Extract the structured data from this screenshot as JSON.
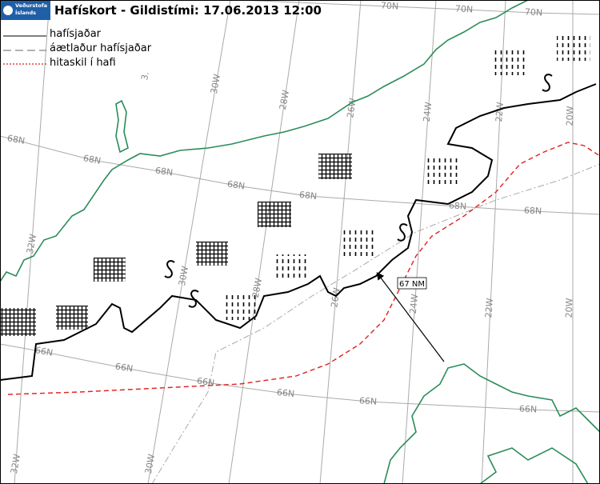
{
  "header": {
    "title": "Hafískort - Gildistími: 17.06.2013 12:00",
    "logo": [
      "Veðurstofa",
      "Íslands"
    ]
  },
  "legend": [
    "hafísjaðar",
    "áætlaður hafísjaðar",
    "hitaskil í hafi"
  ],
  "grid_labels": [
    "70N",
    "70N",
    "70N",
    "3.",
    "30W",
    "28W",
    "26W",
    "24W",
    "22W",
    "20W",
    "68N",
    "68N",
    "68N",
    "68N",
    "68N",
    "68N",
    "68N",
    "32W",
    "30W",
    "28W",
    "26W",
    "24W",
    "22W",
    "20W",
    "66N",
    "66N",
    "66N",
    "66N",
    "66N",
    "66N",
    "32W",
    "30W"
  ],
  "annotation": "67 NM"
}
